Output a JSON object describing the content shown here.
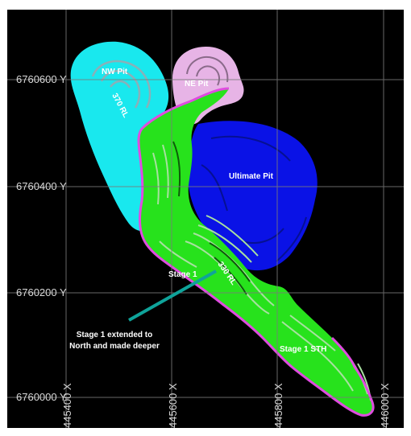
{
  "map": {
    "y_labels": [
      "6760600 Y",
      "6760400 Y",
      "6760200 Y",
      "6760000 Y"
    ],
    "x_labels": [
      "445400 X",
      "445600 X",
      "445800 X",
      "446000 X"
    ],
    "pit_labels": {
      "nw_pit": "NW Pit",
      "ne_pit": "NE Pit",
      "ultimate_pit": "Ultimate Pit",
      "stage1": "Stage 1",
      "stage1_sth": "Stage 1 STH",
      "rl_370": "370 RL",
      "rl_330": "330 RL"
    },
    "annotation": {
      "line1": "Stage 1 extended to",
      "line2": "North and made deeper"
    },
    "colors": {
      "background": "#000000",
      "grid": "#7a7a7a",
      "nw_pit": "#19e8ee",
      "ne_pit": "#e7b4e6",
      "ultimate_pit": "#0a12e6",
      "stage1": "#27e21c",
      "outline": "#e04be0",
      "arrow": "#0fa39a"
    }
  }
}
